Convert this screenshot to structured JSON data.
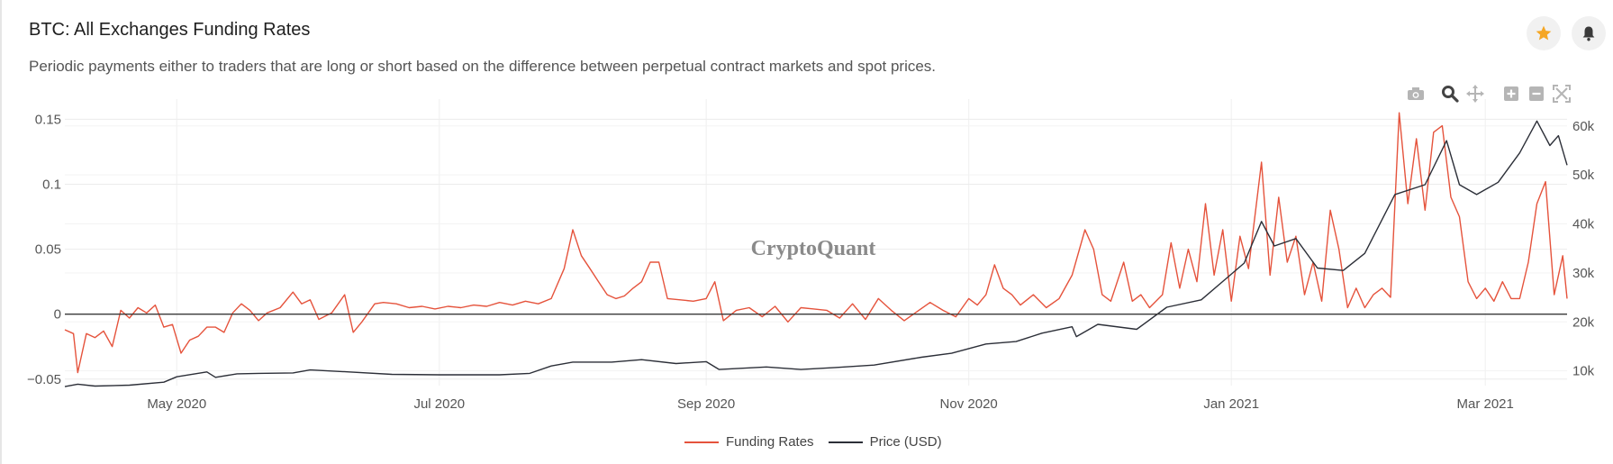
{
  "header": {
    "title": "BTC: All Exchanges Funding Rates",
    "subtitle": "Periodic payments either to traders that are long or short based on the difference between perpetual contract markets and spot prices."
  },
  "toolbar": {
    "favorite_icon": "star-icon",
    "alert_icon": "bell-icon",
    "modebar": [
      "camera-icon",
      "zoom-icon",
      "pan-icon",
      "zoom-in-icon",
      "zoom-out-icon",
      "autoscale-icon"
    ]
  },
  "colors": {
    "funding": "#e5533c",
    "price": "#2c2f38",
    "star": "#f5a623"
  },
  "watermark": "CryptoQuant",
  "chart_data": {
    "type": "line",
    "title": "BTC: All Exchanges Funding Rates",
    "x_range": [
      "2020-04-05",
      "2021-03-20"
    ],
    "x_ticks": [
      {
        "date": "2020-05-01",
        "label": "May 2020"
      },
      {
        "date": "2020-07-01",
        "label": "Jul 2020"
      },
      {
        "date": "2020-09-01",
        "label": "Sep 2020"
      },
      {
        "date": "2020-11-01",
        "label": "Nov 2020"
      },
      {
        "date": "2021-01-01",
        "label": "Jan 2021"
      },
      {
        "date": "2021-03-01",
        "label": "Mar 2021"
      }
    ],
    "y_left": {
      "range": [
        -0.055,
        0.16
      ],
      "ticks": [
        -0.05,
        0,
        0.05,
        0.1,
        0.15
      ],
      "tick_labels": [
        "−0.05",
        "0",
        "0.05",
        "0.1",
        "0.15"
      ]
    },
    "y_right": {
      "range": [
        7000,
        64000
      ],
      "ticks": [
        10000,
        20000,
        30000,
        40000,
        50000,
        60000
      ],
      "tick_labels": [
        "10k",
        "20k",
        "30k",
        "40k",
        "50k",
        "60k"
      ]
    },
    "grid": true,
    "legend_position": "bottom-center",
    "series": [
      {
        "name": "Funding Rates",
        "axis": "left",
        "points": [
          [
            "2020-04-05",
            -0.012
          ],
          [
            "2020-04-07",
            -0.015
          ],
          [
            "2020-04-08",
            -0.045
          ],
          [
            "2020-04-10",
            -0.015
          ],
          [
            "2020-04-12",
            -0.018
          ],
          [
            "2020-04-14",
            -0.013
          ],
          [
            "2020-04-16",
            -0.025
          ],
          [
            "2020-04-18",
            0.003
          ],
          [
            "2020-04-20",
            -0.003
          ],
          [
            "2020-04-22",
            0.005
          ],
          [
            "2020-04-24",
            0.001
          ],
          [
            "2020-04-26",
            0.007
          ],
          [
            "2020-04-28",
            -0.01
          ],
          [
            "2020-04-30",
            -0.008
          ],
          [
            "2020-05-02",
            -0.03
          ],
          [
            "2020-05-04",
            -0.02
          ],
          [
            "2020-05-06",
            -0.017
          ],
          [
            "2020-05-08",
            -0.01
          ],
          [
            "2020-05-10",
            -0.01
          ],
          [
            "2020-05-12",
            -0.014
          ],
          [
            "2020-05-14",
            0.001
          ],
          [
            "2020-05-16",
            0.008
          ],
          [
            "2020-05-18",
            0.003
          ],
          [
            "2020-05-20",
            -0.005
          ],
          [
            "2020-05-22",
            0.001
          ],
          [
            "2020-05-25",
            0.005
          ],
          [
            "2020-05-28",
            0.017
          ],
          [
            "2020-05-30",
            0.008
          ],
          [
            "2020-06-01",
            0.011
          ],
          [
            "2020-06-03",
            -0.004
          ],
          [
            "2020-06-06",
            0.001
          ],
          [
            "2020-06-09",
            0.015
          ],
          [
            "2020-06-11",
            -0.014
          ],
          [
            "2020-06-13",
            -0.006
          ],
          [
            "2020-06-16",
            0.008
          ],
          [
            "2020-06-18",
            0.009
          ],
          [
            "2020-06-21",
            0.008
          ],
          [
            "2020-06-24",
            0.005
          ],
          [
            "2020-06-27",
            0.006
          ],
          [
            "2020-06-30",
            0.004
          ],
          [
            "2020-07-03",
            0.006
          ],
          [
            "2020-07-06",
            0.005
          ],
          [
            "2020-07-09",
            0.007
          ],
          [
            "2020-07-12",
            0.006
          ],
          [
            "2020-07-15",
            0.009
          ],
          [
            "2020-07-18",
            0.007
          ],
          [
            "2020-07-21",
            0.01
          ],
          [
            "2020-07-24",
            0.008
          ],
          [
            "2020-07-27",
            0.012
          ],
          [
            "2020-07-30",
            0.035
          ],
          [
            "2020-08-01",
            0.065
          ],
          [
            "2020-08-03",
            0.045
          ],
          [
            "2020-08-05",
            0.035
          ],
          [
            "2020-08-07",
            0.025
          ],
          [
            "2020-08-09",
            0.015
          ],
          [
            "2020-08-11",
            0.012
          ],
          [
            "2020-08-13",
            0.014
          ],
          [
            "2020-08-15",
            0.02
          ],
          [
            "2020-08-17",
            0.025
          ],
          [
            "2020-08-19",
            0.04
          ],
          [
            "2020-08-21",
            0.04
          ],
          [
            "2020-08-23",
            0.012
          ],
          [
            "2020-08-26",
            0.011
          ],
          [
            "2020-08-29",
            0.01
          ],
          [
            "2020-09-01",
            0.012
          ],
          [
            "2020-09-03",
            0.025
          ],
          [
            "2020-09-05",
            -0.005
          ],
          [
            "2020-09-08",
            0.003
          ],
          [
            "2020-09-11",
            0.005
          ],
          [
            "2020-09-14",
            -0.002
          ],
          [
            "2020-09-17",
            0.006
          ],
          [
            "2020-09-20",
            -0.006
          ],
          [
            "2020-09-23",
            0.005
          ],
          [
            "2020-09-26",
            0.004
          ],
          [
            "2020-09-29",
            0.003
          ],
          [
            "2020-10-02",
            -0.003
          ],
          [
            "2020-10-05",
            0.008
          ],
          [
            "2020-10-08",
            -0.004
          ],
          [
            "2020-10-11",
            0.012
          ],
          [
            "2020-10-14",
            0.003
          ],
          [
            "2020-10-17",
            -0.005
          ],
          [
            "2020-10-20",
            0.002
          ],
          [
            "2020-10-23",
            0.009
          ],
          [
            "2020-10-26",
            0.003
          ],
          [
            "2020-10-29",
            -0.002
          ],
          [
            "2020-11-01",
            0.012
          ],
          [
            "2020-11-03",
            0.007
          ],
          [
            "2020-11-05",
            0.015
          ],
          [
            "2020-11-07",
            0.038
          ],
          [
            "2020-11-09",
            0.02
          ],
          [
            "2020-11-11",
            0.015
          ],
          [
            "2020-11-13",
            0.007
          ],
          [
            "2020-11-16",
            0.015
          ],
          [
            "2020-11-19",
            0.005
          ],
          [
            "2020-11-22",
            0.012
          ],
          [
            "2020-11-25",
            0.03
          ],
          [
            "2020-11-28",
            0.065
          ],
          [
            "2020-11-30",
            0.05
          ],
          [
            "2020-12-02",
            0.015
          ],
          [
            "2020-12-04",
            0.01
          ],
          [
            "2020-12-07",
            0.04
          ],
          [
            "2020-12-09",
            0.01
          ],
          [
            "2020-12-11",
            0.015
          ],
          [
            "2020-12-13",
            0.005
          ],
          [
            "2020-12-16",
            0.015
          ],
          [
            "2020-12-18",
            0.055
          ],
          [
            "2020-12-20",
            0.02
          ],
          [
            "2020-12-22",
            0.05
          ],
          [
            "2020-12-24",
            0.025
          ],
          [
            "2020-12-26",
            0.085
          ],
          [
            "2020-12-28",
            0.03
          ],
          [
            "2020-12-30",
            0.065
          ],
          [
            "2021-01-01",
            0.01
          ],
          [
            "2021-01-03",
            0.06
          ],
          [
            "2021-01-05",
            0.035
          ],
          [
            "2021-01-08",
            0.117
          ],
          [
            "2021-01-10",
            0.03
          ],
          [
            "2021-01-12",
            0.09
          ],
          [
            "2021-01-14",
            0.04
          ],
          [
            "2021-01-16",
            0.06
          ],
          [
            "2021-01-18",
            0.015
          ],
          [
            "2021-01-20",
            0.04
          ],
          [
            "2021-01-22",
            0.01
          ],
          [
            "2021-01-24",
            0.08
          ],
          [
            "2021-01-26",
            0.05
          ],
          [
            "2021-01-28",
            0.005
          ],
          [
            "2021-01-30",
            0.02
          ],
          [
            "2021-02-01",
            0.005
          ],
          [
            "2021-02-03",
            0.015
          ],
          [
            "2021-02-05",
            0.02
          ],
          [
            "2021-02-07",
            0.013
          ],
          [
            "2021-02-09",
            0.155
          ],
          [
            "2021-02-11",
            0.085
          ],
          [
            "2021-02-13",
            0.135
          ],
          [
            "2021-02-15",
            0.08
          ],
          [
            "2021-02-17",
            0.14
          ],
          [
            "2021-02-19",
            0.145
          ],
          [
            "2021-02-21",
            0.09
          ],
          [
            "2021-02-23",
            0.075
          ],
          [
            "2021-02-25",
            0.025
          ],
          [
            "2021-02-27",
            0.012
          ],
          [
            "2021-03-01",
            0.02
          ],
          [
            "2021-03-03",
            0.01
          ],
          [
            "2021-03-05",
            0.025
          ],
          [
            "2021-03-07",
            0.012
          ],
          [
            "2021-03-09",
            0.012
          ],
          [
            "2021-03-11",
            0.04
          ],
          [
            "2021-03-13",
            0.085
          ],
          [
            "2021-03-15",
            0.102
          ],
          [
            "2021-03-17",
            0.015
          ],
          [
            "2021-03-19",
            0.045
          ],
          [
            "2021-03-20",
            0.012
          ]
        ]
      },
      {
        "name": "Price (USD)",
        "axis": "right",
        "points": [
          [
            "2020-04-05",
            6800
          ],
          [
            "2020-04-08",
            7300
          ],
          [
            "2020-04-12",
            6900
          ],
          [
            "2020-04-20",
            7100
          ],
          [
            "2020-04-28",
            7700
          ],
          [
            "2020-05-01",
            8800
          ],
          [
            "2020-05-08",
            9800
          ],
          [
            "2020-05-10",
            8700
          ],
          [
            "2020-05-15",
            9400
          ],
          [
            "2020-05-20",
            9500
          ],
          [
            "2020-05-28",
            9600
          ],
          [
            "2020-06-01",
            10200
          ],
          [
            "2020-06-10",
            9800
          ],
          [
            "2020-06-20",
            9300
          ],
          [
            "2020-07-01",
            9200
          ],
          [
            "2020-07-15",
            9200
          ],
          [
            "2020-07-22",
            9500
          ],
          [
            "2020-07-27",
            11000
          ],
          [
            "2020-08-01",
            11800
          ],
          [
            "2020-08-10",
            11800
          ],
          [
            "2020-08-17",
            12300
          ],
          [
            "2020-08-25",
            11500
          ],
          [
            "2020-09-01",
            11900
          ],
          [
            "2020-09-04",
            10300
          ],
          [
            "2020-09-15",
            10800
          ],
          [
            "2020-09-23",
            10300
          ],
          [
            "2020-10-01",
            10700
          ],
          [
            "2020-10-10",
            11200
          ],
          [
            "2020-10-21",
            12800
          ],
          [
            "2020-10-28",
            13600
          ],
          [
            "2020-11-05",
            15500
          ],
          [
            "2020-11-12",
            16000
          ],
          [
            "2020-11-18",
            17700
          ],
          [
            "2020-11-25",
            19000
          ],
          [
            "2020-11-26",
            17000
          ],
          [
            "2020-12-01",
            19500
          ],
          [
            "2020-12-10",
            18500
          ],
          [
            "2020-12-17",
            23000
          ],
          [
            "2020-12-25",
            24500
          ],
          [
            "2020-12-31",
            29000
          ],
          [
            "2021-01-04",
            32000
          ],
          [
            "2021-01-08",
            40500
          ],
          [
            "2021-01-11",
            35500
          ],
          [
            "2021-01-16",
            37000
          ],
          [
            "2021-01-21",
            31000
          ],
          [
            "2021-01-27",
            30500
          ],
          [
            "2021-02-01",
            34000
          ],
          [
            "2021-02-08",
            46000
          ],
          [
            "2021-02-15",
            48000
          ],
          [
            "2021-02-20",
            57000
          ],
          [
            "2021-02-23",
            48000
          ],
          [
            "2021-02-27",
            46000
          ],
          [
            "2021-03-04",
            48500
          ],
          [
            "2021-03-09",
            54500
          ],
          [
            "2021-03-13",
            61000
          ],
          [
            "2021-03-16",
            56000
          ],
          [
            "2021-03-18",
            58000
          ],
          [
            "2021-03-20",
            52000
          ]
        ]
      }
    ]
  }
}
